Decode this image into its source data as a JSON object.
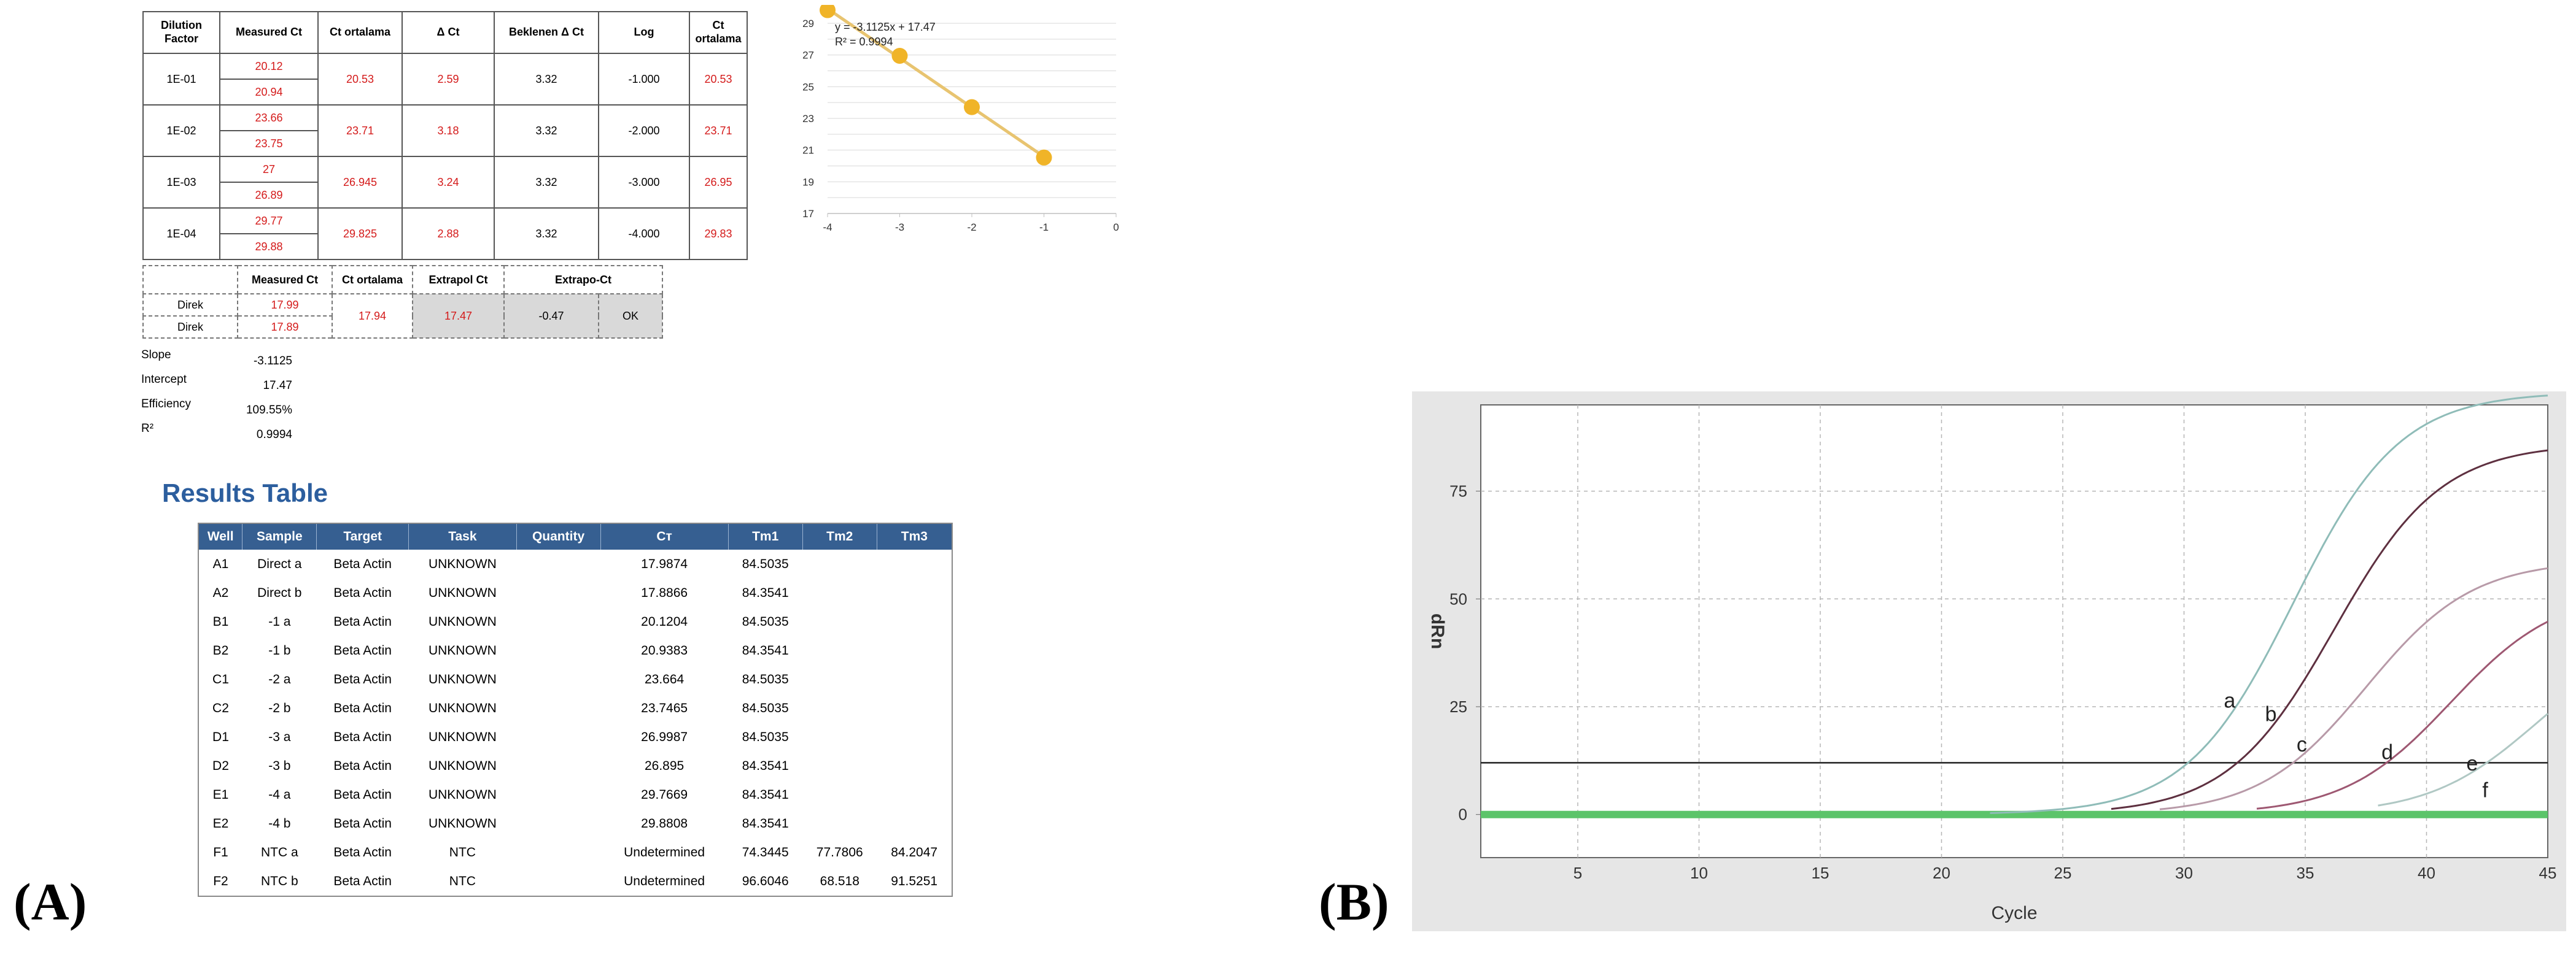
{
  "dilution_table": {
    "headers": [
      "Dilution Factor",
      "Measured Ct",
      "Ct ortalama",
      "Δ Ct",
      "Beklenen Δ Ct",
      "Log",
      "Ct ortalama"
    ],
    "rows": [
      {
        "factor": "1E-01",
        "m1": "20.12",
        "m2": "20.94",
        "avg": "20.53",
        "dct": "2.59",
        "exp": "3.32",
        "log": "-1.000",
        "ct2": "20.53"
      },
      {
        "factor": "1E-02",
        "m1": "23.66",
        "m2": "23.75",
        "avg": "23.71",
        "dct": "3.18",
        "exp": "3.32",
        "log": "-2.000",
        "ct2": "23.71"
      },
      {
        "factor": "1E-03",
        "m1": "27",
        "m2": "26.89",
        "avg": "26.945",
        "dct": "3.24",
        "exp": "3.32",
        "log": "-3.000",
        "ct2": "26.95"
      },
      {
        "factor": "1E-04",
        "m1": "29.77",
        "m2": "29.88",
        "avg": "29.825",
        "dct": "2.88",
        "exp": "3.32",
        "log": "-4.000",
        "ct2": "29.83"
      }
    ]
  },
  "direct_table": {
    "headers": [
      "",
      "Measured Ct",
      "Ct ortalama",
      "Extrapol Ct",
      "Extrapo-Ct"
    ],
    "rows": [
      {
        "label": "Direk",
        "measured": "17.99"
      },
      {
        "label": "Direk",
        "measured": "17.89"
      }
    ],
    "avg": "17.94",
    "extrapol": "17.47",
    "diff": "-0.47",
    "status": "OK"
  },
  "stats": [
    {
      "label": "Slope",
      "value": "-3.1125"
    },
    {
      "label": "Intercept",
      "value": "17.47"
    },
    {
      "label": "Efficiency",
      "value": "109.55%"
    },
    {
      "label": "R²",
      "value": "0.9994"
    }
  ],
  "results": {
    "title": "Results Table",
    "headers": [
      "Well",
      "Sample",
      "Target",
      "Task",
      "Quantity",
      "Cт",
      "Tm1",
      "Tm2",
      "Tm3"
    ],
    "rows": [
      [
        "A1",
        "Direct a",
        "Beta Actin",
        "UNKNOWN",
        "",
        "17.9874",
        "84.5035",
        "",
        ""
      ],
      [
        "A2",
        "Direct b",
        "Beta Actin",
        "UNKNOWN",
        "",
        "17.8866",
        "84.3541",
        "",
        ""
      ],
      [
        "B1",
        "-1 a",
        "Beta Actin",
        "UNKNOWN",
        "",
        "20.1204",
        "84.5035",
        "",
        ""
      ],
      [
        "B2",
        "-1 b",
        "Beta Actin",
        "UNKNOWN",
        "",
        "20.9383",
        "84.3541",
        "",
        ""
      ],
      [
        "C1",
        "-2 a",
        "Beta Actin",
        "UNKNOWN",
        "",
        "23.664",
        "84.5035",
        "",
        ""
      ],
      [
        "C2",
        "-2 b",
        "Beta Actin",
        "UNKNOWN",
        "",
        "23.7465",
        "84.5035",
        "",
        ""
      ],
      [
        "D1",
        "-3 a",
        "Beta Actin",
        "UNKNOWN",
        "",
        "26.9987",
        "84.5035",
        "",
        ""
      ],
      [
        "D2",
        "-3 b",
        "Beta Actin",
        "UNKNOWN",
        "",
        "26.895",
        "84.3541",
        "",
        ""
      ],
      [
        "E1",
        "-4 a",
        "Beta Actin",
        "UNKNOWN",
        "",
        "29.7669",
        "84.3541",
        "",
        ""
      ],
      [
        "E2",
        "-4 b",
        "Beta Actin",
        "UNKNOWN",
        "",
        "29.8808",
        "84.3541",
        "",
        ""
      ],
      [
        "F1",
        "NTC a",
        "Beta Actin",
        "NTC",
        "",
        "Undetermined",
        "74.3445",
        "77.7806",
        "84.2047"
      ],
      [
        "F2",
        "NTC b",
        "Beta Actin",
        "NTC",
        "",
        "Undetermined",
        "96.6046",
        "68.518",
        "91.5251"
      ]
    ]
  },
  "panel_labels": {
    "a": "(A)",
    "b": "(B)"
  },
  "chart_data": [
    {
      "type": "scatter",
      "title": "",
      "xlabel": "",
      "ylabel": "",
      "xlim": [
        -4,
        0
      ],
      "ylim": [
        17,
        29
      ],
      "xticks": [
        -4,
        -3,
        -2,
        -1,
        0
      ],
      "yticks": [
        17,
        19,
        21,
        23,
        25,
        27,
        29
      ],
      "x": [
        -4,
        -3,
        -2,
        -1
      ],
      "y": [
        29.83,
        26.95,
        23.71,
        20.53
      ],
      "trendline": {
        "slope": -3.1125,
        "intercept": 17.47
      },
      "annotations": [
        "y = -3.1125x + 17.47",
        "R² = 0.9994"
      ],
      "grid": true,
      "colors": {
        "point": "#f0b428",
        "line": "#e8c470",
        "grid": "#d9d9d9"
      }
    },
    {
      "type": "line",
      "title": "",
      "xlabel": "Cycle",
      "ylabel": "dRn",
      "xlim": [
        1,
        45
      ],
      "ylim": [
        -10,
        95
      ],
      "xticks": [
        5,
        10,
        15,
        20,
        25,
        30,
        35,
        40,
        45
      ],
      "yticks": [
        0,
        25,
        50,
        75
      ],
      "threshold": 12,
      "series": [
        {
          "name": "a",
          "midpoint": 34.5,
          "plateau": 98,
          "start": 22,
          "color": "#8fbcb8"
        },
        {
          "name": "b",
          "midpoint": 36.2,
          "plateau": 86,
          "start": 27,
          "color": "#5e3040"
        },
        {
          "name": "c",
          "midpoint": 37.5,
          "plateau": 59,
          "start": 29,
          "color": "#b89aa8"
        },
        {
          "name": "d",
          "midpoint": 41.0,
          "plateau": 52,
          "start": 33,
          "color": "#9e5872"
        },
        {
          "name": "e",
          "midpoint": 44.5,
          "plateau": 42,
          "start": 38,
          "color": "#b0c8c4"
        }
      ],
      "baseline_label": "f",
      "baseline_color": "#5cc46a",
      "grid": true
    }
  ]
}
